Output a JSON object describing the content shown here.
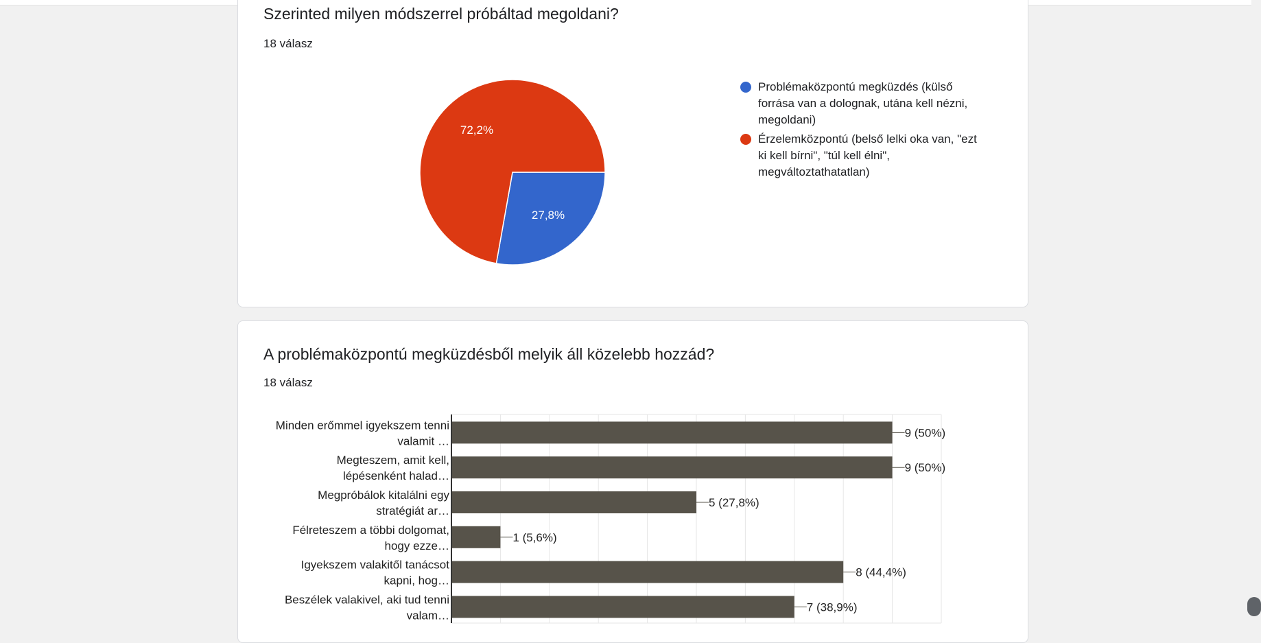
{
  "questions": [
    {
      "title": "Szerinted milyen módszerrel próbáltad megoldani?",
      "responses": "18 válasz",
      "legend": [
        {
          "label": "Problémaközpontú megküzdés (külső forrása van a dolognak, utána kell nézni, megoldani)",
          "color": "#3366cc"
        },
        {
          "label": "Érzelemközpontú (belső lelki oka van, \"ezt ki kell bírni\", \"túl kell élni\", megváltoztathatatlan)",
          "color": "#dc3912"
        }
      ]
    },
    {
      "title": "A problémaközpontú megküzdésből melyik áll közelebb hozzád?",
      "responses": "18 válasz"
    }
  ],
  "chart_data": [
    {
      "type": "pie",
      "categories": [
        "Problémaközpontú megküzdés (külső forrása van a dolognak, utána kell nézni, megoldani)",
        "Érzelemközpontú (belső lelki oka van, \"ezt ki kell bírni\", \"túl kell élni\", megváltoztathatatlan)"
      ],
      "values": [
        27.8,
        72.2
      ],
      "data_labels": [
        "27,8%",
        "72,2%"
      ],
      "colors": [
        "#3366cc",
        "#dc3912"
      ],
      "legend": "right"
    },
    {
      "type": "bar",
      "orientation": "horizontal",
      "categories": [
        [
          "Minden erőmmel igyekszem tenni",
          "valamit …"
        ],
        [
          "Megteszem, amit kell,",
          "lépésenként halad…"
        ],
        [
          "Megpróbálok kitalálni egy",
          "stratégiát ar…"
        ],
        [
          "Félreteszem a többi dolgomat,",
          "hogy ezze…"
        ],
        [
          "Igyekszem valakitől tanácsot",
          "kapni, hog…"
        ],
        [
          "Beszélek valakivel, aki tud tenni",
          "valam…"
        ]
      ],
      "values": [
        9,
        9,
        5,
        1,
        8,
        7
      ],
      "data_labels": [
        "9 (50%)",
        "9 (50%)",
        "5 (27,8%)",
        "1 (5,6%)",
        "8 (44,4%)",
        "7 (38,9%)"
      ],
      "xlim": [
        0,
        10
      ],
      "color": "#57534a",
      "grid": true
    }
  ]
}
